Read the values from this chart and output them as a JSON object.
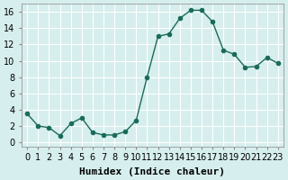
{
  "x": [
    0,
    1,
    2,
    3,
    4,
    5,
    6,
    7,
    8,
    9,
    10,
    11,
    12,
    13,
    14,
    15,
    16,
    17,
    18,
    19,
    20,
    21,
    22,
    23
  ],
  "y": [
    3.5,
    2.0,
    1.8,
    0.8,
    2.3,
    3.0,
    1.2,
    0.9,
    0.9,
    1.3,
    2.7,
    8.0,
    13.0,
    13.3,
    15.2,
    16.2,
    16.2,
    14.8,
    11.3,
    10.8,
    9.2,
    9.3,
    10.4,
    9.7
  ],
  "line_color": "#1a6b5a",
  "marker": "o",
  "marker_size": 3,
  "bg_color": "#d6eeee",
  "grid_color": "#ffffff",
  "xlabel": "Humidex (Indice chaleur)",
  "ylim": [
    -0.5,
    17
  ],
  "xlim": [
    -0.5,
    23.5
  ],
  "yticks": [
    0,
    2,
    4,
    6,
    8,
    10,
    12,
    14,
    16
  ],
  "xtick_labels": [
    "0",
    "1",
    "2",
    "3",
    "4",
    "5",
    "6",
    "7",
    "8",
    "9",
    "10",
    "11",
    "12",
    "13",
    "14",
    "15",
    "16",
    "17",
    "18",
    "19",
    "20",
    "21",
    "22",
    "23"
  ],
  "xlabel_fontsize": 8,
  "tick_fontsize": 7
}
